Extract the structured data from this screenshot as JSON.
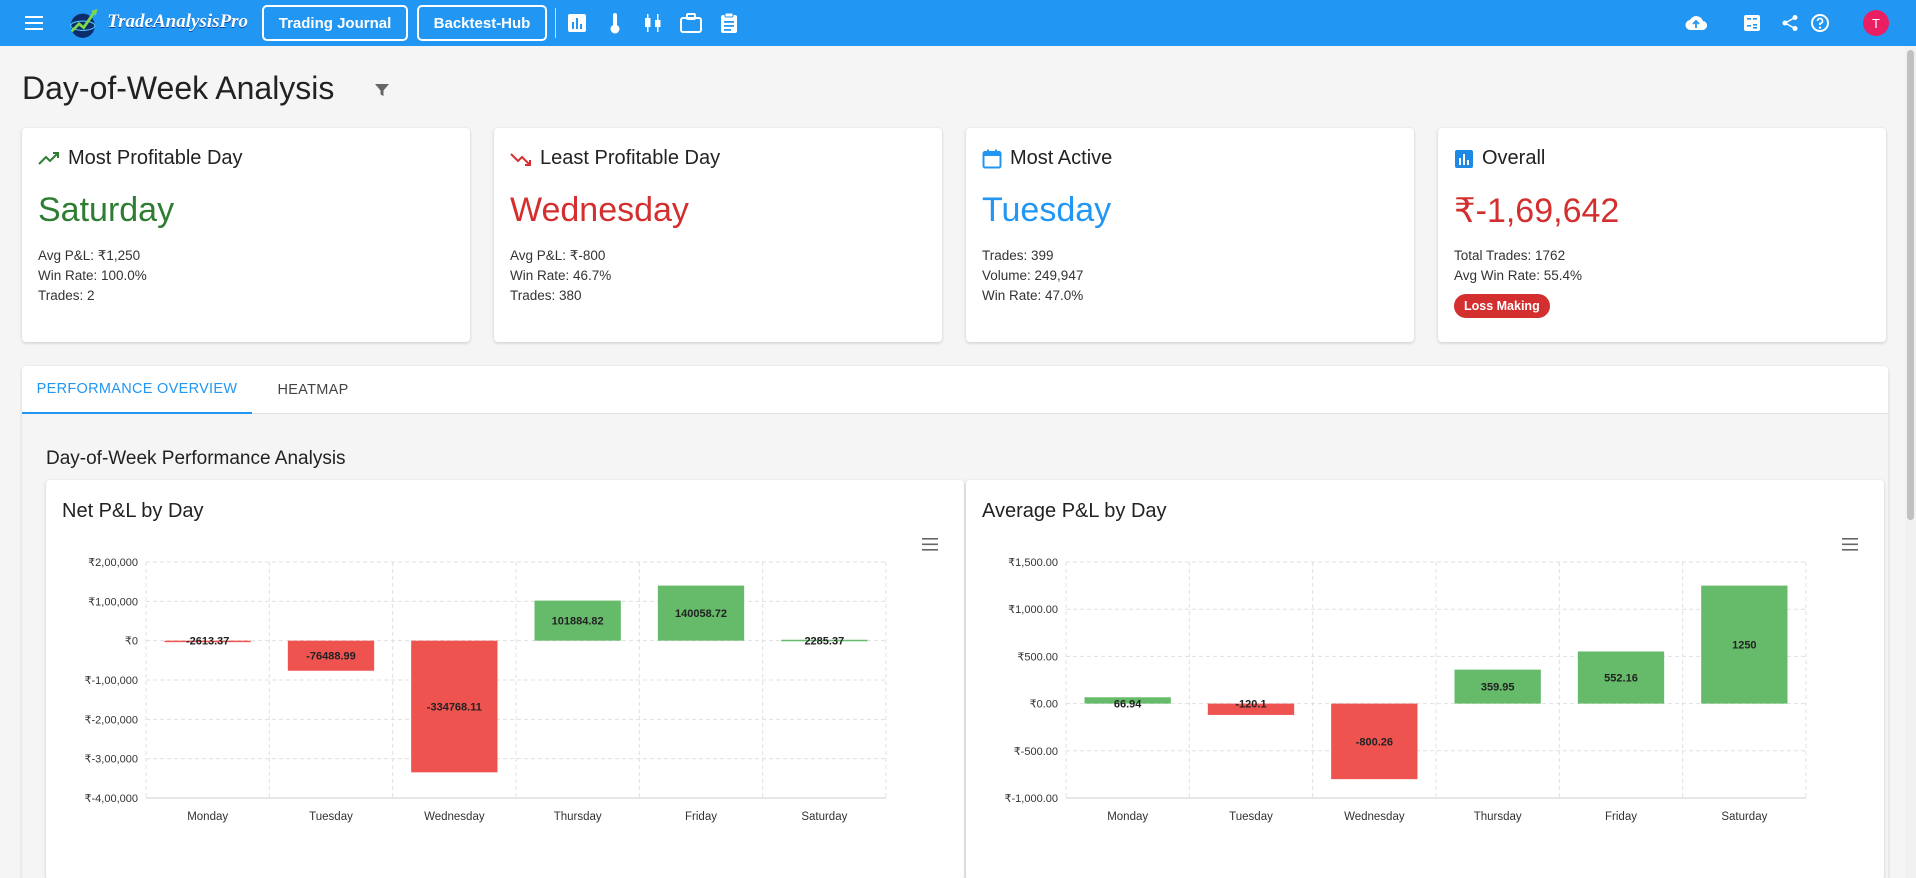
{
  "app": {
    "name": "TradeAnalysisPro"
  },
  "nav": {
    "trading_journal": "Trading Journal",
    "backtest_hub": "Backtest-Hub"
  },
  "user": {
    "avatar_initial": "T"
  },
  "page": {
    "title": "Day-of-Week Analysis"
  },
  "cards": {
    "most_profitable": {
      "title": "Most Profitable Day",
      "value": "Saturday",
      "lines": [
        "Avg P&L: ₹1,250",
        "Win Rate: 100.0%",
        "Trades: 2"
      ]
    },
    "least_profitable": {
      "title": "Least Profitable Day",
      "value": "Wednesday",
      "lines": [
        "Avg P&L: ₹-800",
        "Win Rate: 46.7%",
        "Trades: 380"
      ]
    },
    "most_active": {
      "title": "Most Active",
      "value": "Tuesday",
      "lines": [
        "Trades: 399",
        "Volume: 249,947",
        "Win Rate: 47.0%"
      ]
    },
    "overall": {
      "title": "Overall",
      "value": "₹-1,69,642",
      "lines": [
        "Total Trades: 1762",
        "Avg Win Rate: 55.4%"
      ],
      "badge": "Loss Making"
    }
  },
  "colors": {
    "brand": "#2196f3",
    "positive": "#2e7d32",
    "negative": "#d32f2f",
    "bar_pos": "#66bb6a",
    "bar_neg": "#ef5350"
  },
  "tabs": [
    {
      "label": "PERFORMANCE OVERVIEW",
      "active": true
    },
    {
      "label": "HEATMAP",
      "active": false
    }
  ],
  "section": {
    "title": "Day-of-Week Performance Analysis"
  },
  "chart_data": [
    {
      "type": "bar",
      "title": "Net P&L by Day",
      "categories": [
        "Monday",
        "Tuesday",
        "Wednesday",
        "Thursday",
        "Friday",
        "Saturday"
      ],
      "values": [
        -2613.37,
        -76488.99,
        -334768.11,
        101884.82,
        140058.72,
        2285.37
      ],
      "data_labels": [
        "-2613.37",
        "-76488.99",
        "-334768.11",
        "101884.82",
        "140058.72",
        "2285.37"
      ],
      "ylim": [
        -400000,
        200000
      ],
      "yticks": [
        200000,
        100000,
        0,
        -100000,
        -200000,
        -300000,
        -400000
      ],
      "ytick_labels": [
        "₹2,00,000",
        "₹1,00,000",
        "₹0",
        "₹-1,00,000",
        "₹-2,00,000",
        "₹-3,00,000",
        "₹-4,00,000"
      ],
      "grid": true
    },
    {
      "type": "bar",
      "title": "Average P&L by Day",
      "categories": [
        "Monday",
        "Tuesday",
        "Wednesday",
        "Thursday",
        "Friday",
        "Saturday"
      ],
      "values": [
        66.94,
        -120.1,
        -800.26,
        359.95,
        552.16,
        1250
      ],
      "data_labels": [
        "66.94",
        "-120.1",
        "-800.26",
        "359.95",
        "552.16",
        "1250"
      ],
      "ylim": [
        -1000,
        1500
      ],
      "yticks": [
        1500,
        1000,
        500,
        0,
        -500,
        -1000
      ],
      "ytick_labels": [
        "₹1,500.00",
        "₹1,000.00",
        "₹500.00",
        "₹0.00",
        "₹-500.00",
        "₹-1,000.00"
      ],
      "grid": true
    }
  ]
}
